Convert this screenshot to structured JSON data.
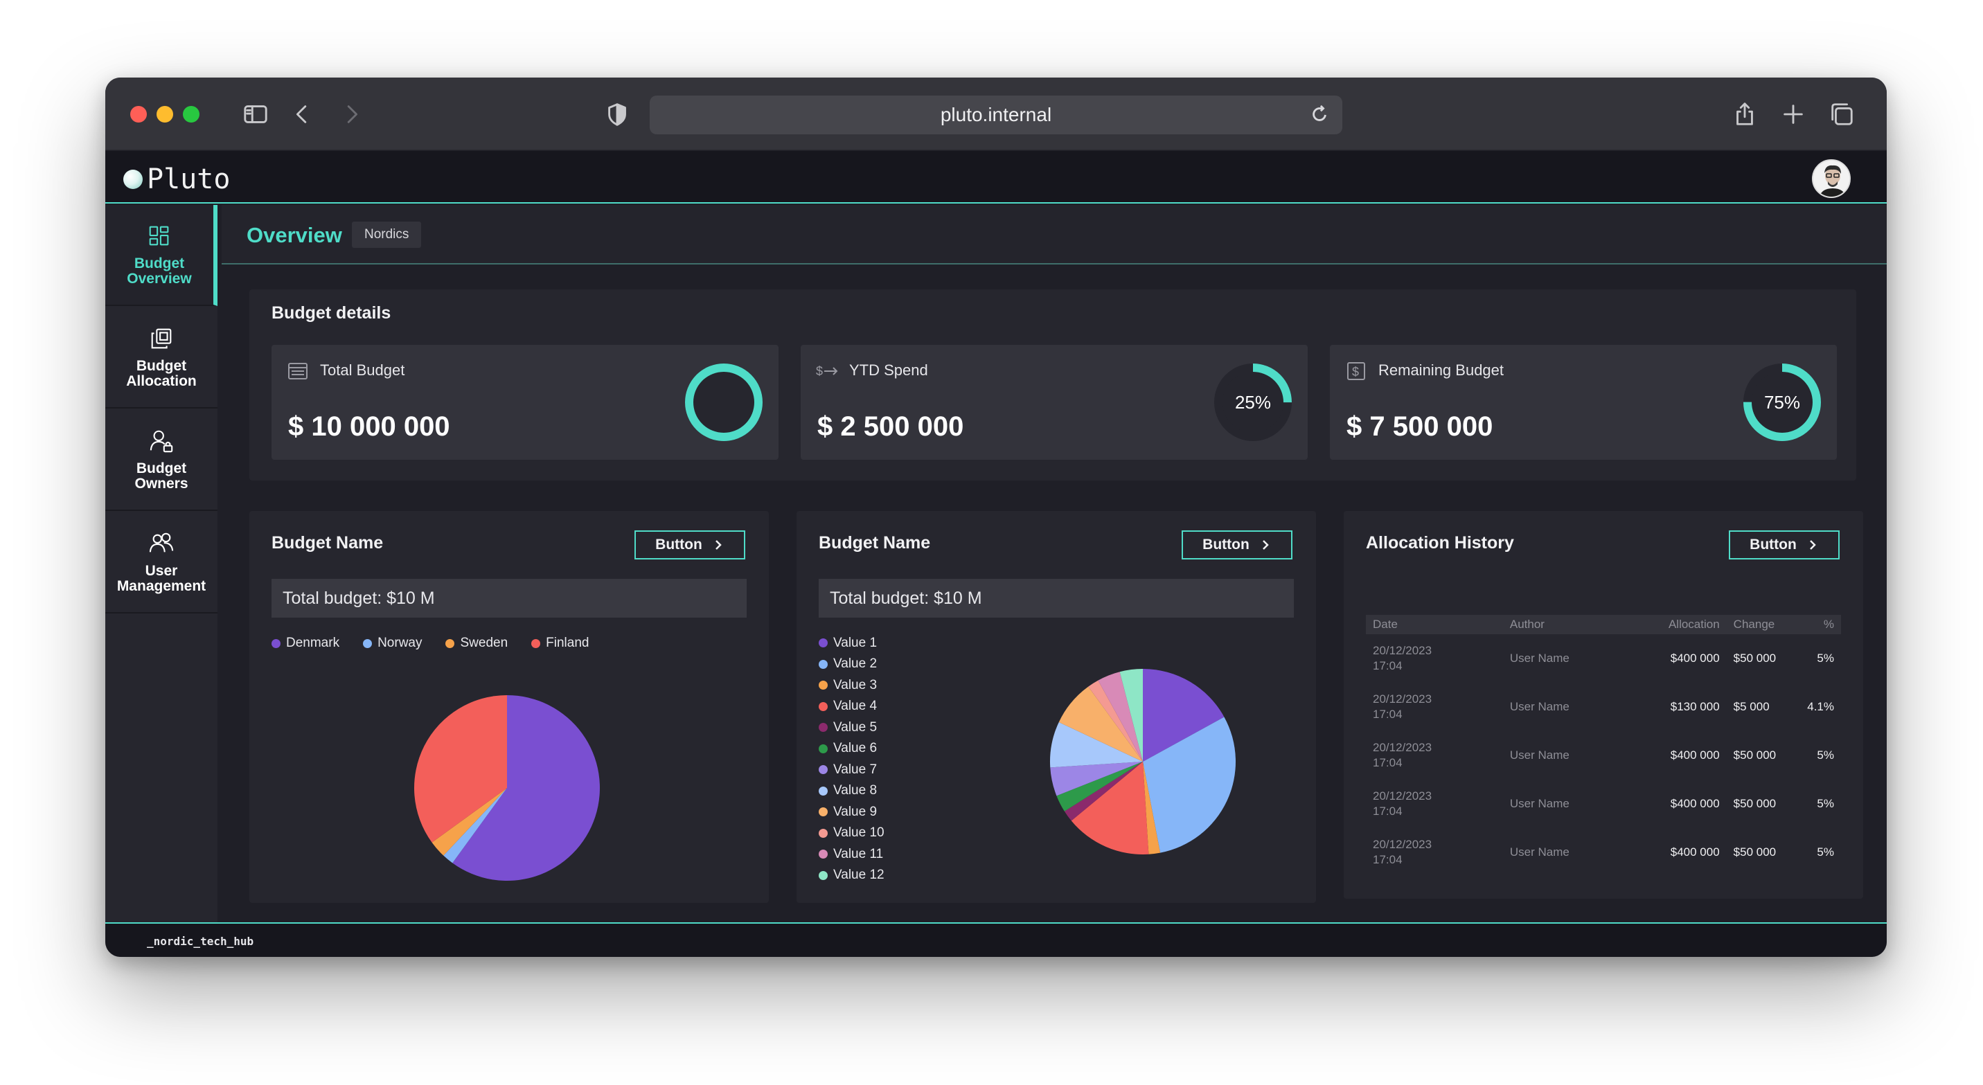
{
  "browser": {
    "url": "pluto.internal",
    "colors": {
      "close": "#fe5f57",
      "minimize": "#febc2e",
      "zoom": "#28c840"
    }
  },
  "app": {
    "name": "Pluto",
    "accent": "#4fdcc8",
    "footer": "_nordic_tech_hub"
  },
  "sidebar": {
    "items": [
      {
        "label_line1": "Budget",
        "label_line2": "Overview",
        "icon": "grid-icon",
        "active": true
      },
      {
        "label_line1": "Budget",
        "label_line2": "Allocation",
        "icon": "copy-stack-icon",
        "active": false
      },
      {
        "label_line1": "Budget",
        "label_line2": "Owners",
        "icon": "user-lock-icon",
        "active": false
      },
      {
        "label_line1": "User",
        "label_line2": "Management",
        "icon": "users-icon",
        "active": false
      }
    ]
  },
  "header": {
    "title": "Overview",
    "region": "Nordics"
  },
  "budget_details": {
    "title": "Budget details",
    "kpis": [
      {
        "label": "Total Budget",
        "value": "$ 10 000 000",
        "icon": "ledger-icon",
        "progress": 1.0,
        "progress_label": ""
      },
      {
        "label": "YTD Spend",
        "value": "$ 2 500 000",
        "icon": "dollar-arrow-icon",
        "progress": 0.25,
        "progress_label": "25%"
      },
      {
        "label": "Remaining Budget",
        "value": "$ 7 500 000",
        "icon": "dollar-box-icon",
        "progress": 0.75,
        "progress_label": "75%"
      }
    ]
  },
  "panels": {
    "budget1": {
      "title": "Budget Name",
      "button": "Button",
      "total": "Total budget: $10 M",
      "legend": [
        {
          "label": "Denmark",
          "color": "#7a4fd1"
        },
        {
          "label": "Norway",
          "color": "#86b6f8"
        },
        {
          "label": "Sweden",
          "color": "#f6a24a"
        },
        {
          "label": "Finland",
          "color": "#f35f5a"
        }
      ]
    },
    "budget2": {
      "title": "Budget Name",
      "button": "Button",
      "total": "Total budget: $10 M",
      "legend": [
        {
          "label": "Value 1",
          "color": "#7a4fd1"
        },
        {
          "label": "Value 2",
          "color": "#86b6f8"
        },
        {
          "label": "Value 3",
          "color": "#f6a24a"
        },
        {
          "label": "Value 4",
          "color": "#f35f5a"
        },
        {
          "label": "Value 5",
          "color": "#8b2a6c"
        },
        {
          "label": "Value 6",
          "color": "#2d9a4a"
        },
        {
          "label": "Value 7",
          "color": "#9c86e6"
        },
        {
          "label": "Value 8",
          "color": "#a7c8fb"
        },
        {
          "label": "Value 9",
          "color": "#f8b06a"
        },
        {
          "label": "Value 10",
          "color": "#f49a92"
        },
        {
          "label": "Value 11",
          "color": "#d88ab7"
        },
        {
          "label": "Value 12",
          "color": "#8ee6c6"
        }
      ]
    },
    "history": {
      "title": "Allocation History",
      "button": "Button",
      "columns": [
        "Date",
        "Author",
        "Allocation",
        "Change",
        "%"
      ],
      "rows": [
        {
          "date": "20/12/2023",
          "time": "17:04",
          "author": "User Name",
          "allocation": "$400 000",
          "change": "$50 000",
          "pct": "5%"
        },
        {
          "date": "20/12/2023",
          "time": "17:04",
          "author": "User Name",
          "allocation": "$130 000",
          "change": "$5 000",
          "pct": "4.1%"
        },
        {
          "date": "20/12/2023",
          "time": "17:04",
          "author": "User Name",
          "allocation": "$400 000",
          "change": "$50 000",
          "pct": "5%"
        },
        {
          "date": "20/12/2023",
          "time": "17:04",
          "author": "User Name",
          "allocation": "$400 000",
          "change": "$50 000",
          "pct": "5%"
        },
        {
          "date": "20/12/2023",
          "time": "17:04",
          "author": "User Name",
          "allocation": "$400 000",
          "change": "$50 000",
          "pct": "5%"
        }
      ]
    }
  },
  "chart_data": [
    {
      "type": "pie",
      "labels": [
        "Denmark",
        "Norway",
        "Sweden",
        "Finland"
      ],
      "values": [
        60,
        2,
        3,
        35
      ],
      "colors": [
        "#7a4fd1",
        "#86b6f8",
        "#f6a24a",
        "#f35f5a"
      ]
    },
    {
      "type": "pie",
      "labels": [
        "Value 1",
        "Value 2",
        "Value 3",
        "Value 4",
        "Value 5",
        "Value 6",
        "Value 7",
        "Value 8",
        "Value 9",
        "Value 10",
        "Value 11",
        "Value 12"
      ],
      "values": [
        17,
        30,
        2,
        15,
        2,
        3,
        5,
        8,
        8,
        2,
        4,
        4
      ],
      "colors": [
        "#7a4fd1",
        "#86b6f8",
        "#f6a24a",
        "#f35f5a",
        "#8b2a6c",
        "#2d9a4a",
        "#9c86e6",
        "#a7c8fb",
        "#f8b06a",
        "#f49a92",
        "#d88ab7",
        "#8ee6c6"
      ]
    }
  ]
}
